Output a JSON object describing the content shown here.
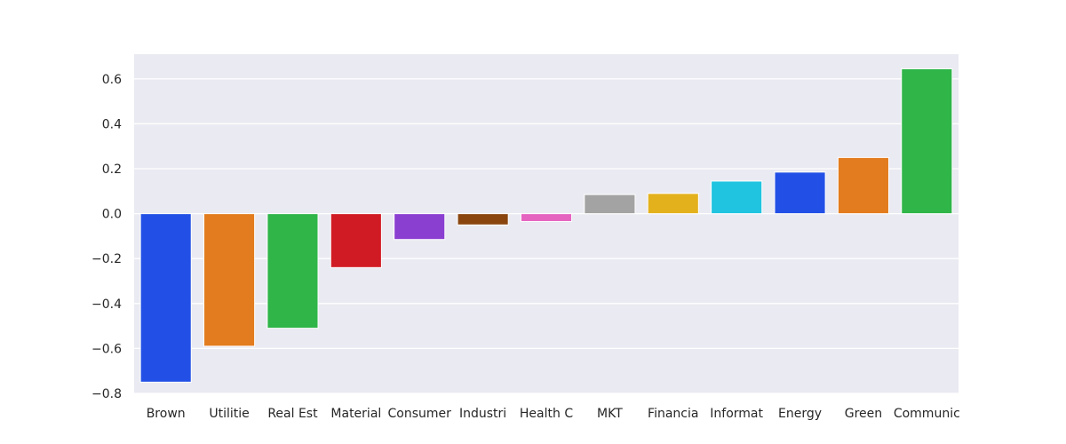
{
  "chart_data": {
    "type": "bar",
    "title": "",
    "xlabel": "",
    "ylabel": "",
    "categories": [
      "Brown",
      "Utilitie",
      "Real Est",
      "Material",
      "Consumer",
      "Industri",
      "Health C",
      "MKT",
      "Financia",
      "Informat",
      "Energy",
      "Green",
      "Communic"
    ],
    "values": [
      -0.75,
      -0.59,
      -0.51,
      -0.24,
      -0.115,
      -0.05,
      -0.035,
      0.085,
      0.09,
      0.145,
      0.185,
      0.25,
      0.645
    ],
    "colors": [
      "#2250e6",
      "#e27c1e",
      "#2fb548",
      "#d11b24",
      "#8b3fd1",
      "#8a450f",
      "#e564c0",
      "#a3a3a3",
      "#e3b11c",
      "#20c3e0",
      "#2250e6",
      "#e27c1e",
      "#2fb548"
    ],
    "ylim": [
      -0.8,
      0.71
    ],
    "yticks": [
      0.6,
      0.4,
      0.2,
      0.0,
      -0.2,
      -0.4,
      -0.6,
      -0.8
    ],
    "ytick_labels": [
      "0.6",
      "0.4",
      "0.2",
      "0.0",
      "−0.2",
      "−0.4",
      "−0.6",
      "−0.8"
    ],
    "grid": true,
    "background": "#eaeaf2",
    "gridcolor": "#ffffff"
  }
}
